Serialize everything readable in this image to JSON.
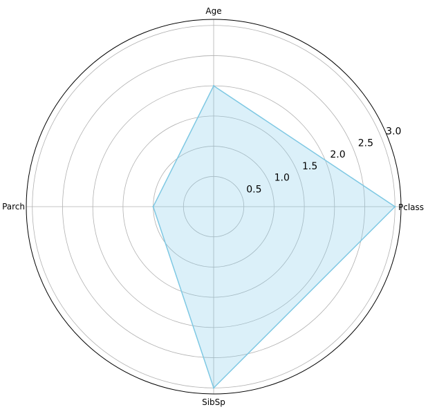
{
  "chart_data": {
    "type": "radar",
    "categories": [
      "Pclass",
      "Age",
      "Parch",
      "SibSp"
    ],
    "series": [
      {
        "values": [
          3.0,
          2.0,
          1.0,
          3.0
        ]
      }
    ],
    "rlim": [
      0,
      3.1
    ],
    "radial_ticks": [
      0.5,
      1.0,
      1.5,
      2.0,
      2.5,
      3.0
    ],
    "radial_tick_labels": [
      "0.5",
      "1.0",
      "1.5",
      "2.0",
      "2.5",
      "3.0"
    ],
    "grid": true,
    "colors": {
      "line": "#7ec8e3",
      "fill": "#87ceeb"
    }
  }
}
